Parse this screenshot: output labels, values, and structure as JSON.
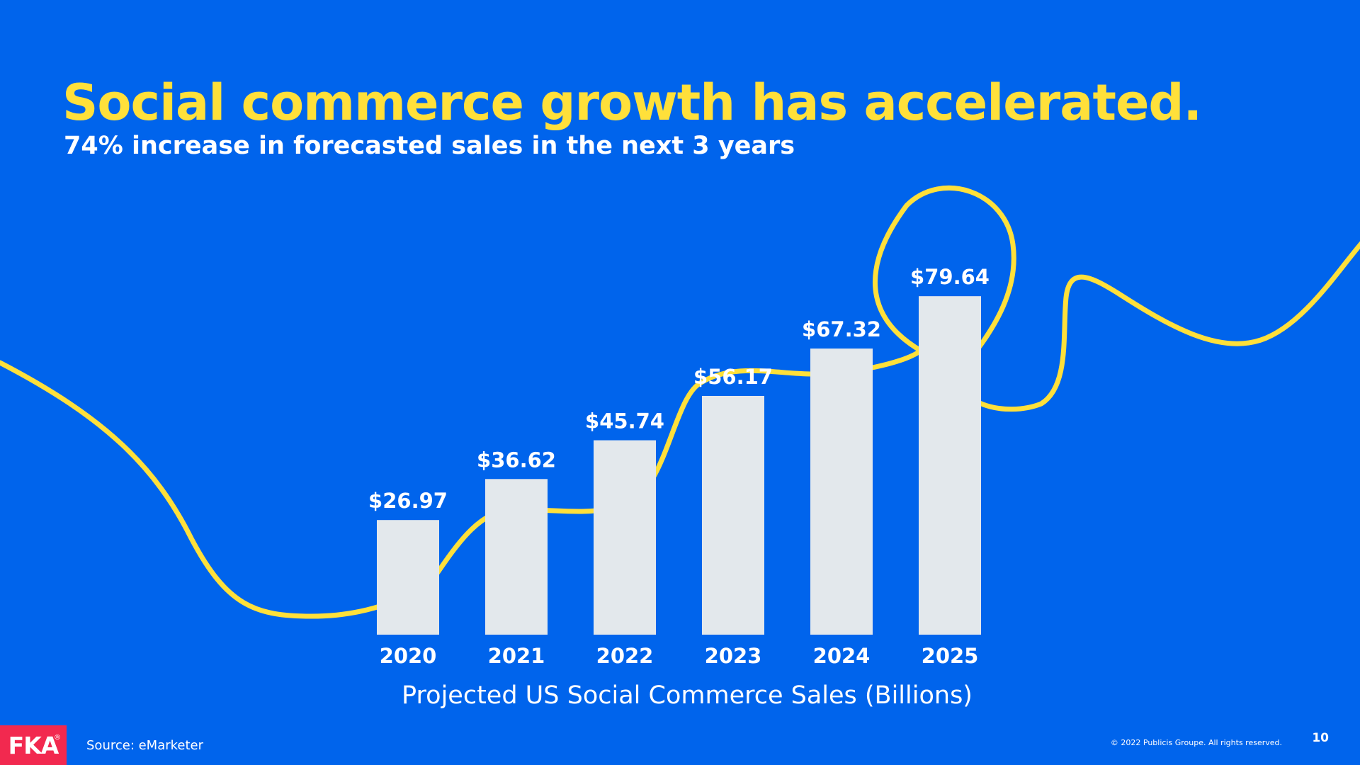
{
  "slide": {
    "title": "Social commerce growth has accelerated.",
    "subtitle": "74% increase in forecasted sales in the next 3 years",
    "caption": "Projected US Social Commerce Sales (Billions)",
    "source": "Source: eMarketer",
    "copyright": "© 2022 Publicis Groupe. All rights reserved.",
    "page_number": "10",
    "logo_text": "FKA",
    "logo_mark": "®"
  },
  "colors": {
    "background": "#0064EC",
    "accent": "#FFE03A",
    "bar": "#E3E8EC",
    "text": "#FFFFFF",
    "logo": "#F2294F"
  },
  "chart_data": {
    "type": "bar",
    "categories": [
      "2020",
      "2021",
      "2022",
      "2023",
      "2024",
      "2025"
    ],
    "values": [
      26.97,
      36.62,
      45.74,
      56.17,
      67.32,
      79.64
    ],
    "value_labels": [
      "$26.97",
      "$36.62",
      "$45.74",
      "$56.17",
      "$67.32",
      "$79.64"
    ],
    "title": "",
    "xlabel": "Projected US Social Commerce Sales (Billions)",
    "ylabel": "",
    "ylim": [
      0,
      90
    ],
    "grid": false,
    "legend": "none",
    "highlighted_category": "2025"
  }
}
